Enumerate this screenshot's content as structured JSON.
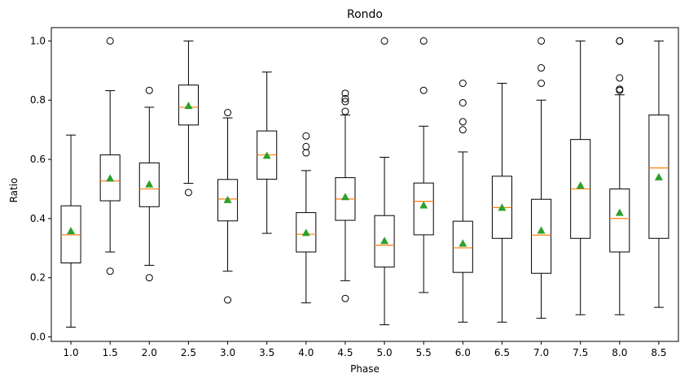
{
  "chart_data": {
    "type": "box",
    "title": "Rondo",
    "xlabel": "Phase",
    "ylabel": "Ratio",
    "ylim": [
      -0.015,
      1.045
    ],
    "yticks": [
      0.0,
      0.2,
      0.4,
      0.6,
      0.8,
      1.0
    ],
    "ytick_labels": [
      "0.0",
      "0.2",
      "0.4",
      "0.6",
      "0.8",
      "1.0"
    ],
    "grid": false,
    "colors": {
      "box": "#000000",
      "median": "#ff7f0e",
      "mean": "#2ca02c"
    },
    "categories": [
      "1.0",
      "1.5",
      "2.0",
      "2.5",
      "3.0",
      "3.5",
      "4.0",
      "4.5",
      "5.0",
      "5.5",
      "6.0",
      "6.5",
      "7.0",
      "7.5",
      "8.0",
      "8.5"
    ],
    "boxes": [
      {
        "whisker_low": 0.033,
        "q1": 0.25,
        "median": 0.345,
        "q3": 0.443,
        "whisker_high": 0.682,
        "mean": 0.358,
        "fliers": []
      },
      {
        "whisker_low": 0.287,
        "q1": 0.46,
        "median": 0.527,
        "q3": 0.615,
        "whisker_high": 0.832,
        "mean": 0.536,
        "fliers": [
          0.222,
          1.0
        ]
      },
      {
        "whisker_low": 0.242,
        "q1": 0.44,
        "median": 0.5,
        "q3": 0.588,
        "whisker_high": 0.776,
        "mean": 0.516,
        "fliers": [
          0.2,
          0.833
        ]
      },
      {
        "whisker_low": 0.519,
        "q1": 0.716,
        "median": 0.776,
        "q3": 0.851,
        "whisker_high": 1.0,
        "mean": 0.781,
        "fliers": [
          0.488
        ]
      },
      {
        "whisker_low": 0.222,
        "q1": 0.392,
        "median": 0.466,
        "q3": 0.532,
        "whisker_high": 0.74,
        "mean": 0.463,
        "fliers": [
          0.125,
          0.758
        ]
      },
      {
        "whisker_low": 0.35,
        "q1": 0.533,
        "median": 0.615,
        "q3": 0.696,
        "whisker_high": 0.895,
        "mean": 0.613,
        "fliers": []
      },
      {
        "whisker_low": 0.115,
        "q1": 0.287,
        "median": 0.347,
        "q3": 0.42,
        "whisker_high": 0.562,
        "mean": 0.352,
        "fliers": [
          0.622,
          0.643,
          0.679
        ]
      },
      {
        "whisker_low": 0.19,
        "q1": 0.394,
        "median": 0.466,
        "q3": 0.538,
        "whisker_high": 0.75,
        "mean": 0.473,
        "fliers": [
          0.13,
          0.762,
          0.795,
          0.805,
          0.823
        ]
      },
      {
        "whisker_low": 0.041,
        "q1": 0.236,
        "median": 0.31,
        "q3": 0.41,
        "whisker_high": 0.607,
        "mean": 0.325,
        "fliers": [
          1.0
        ]
      },
      {
        "whisker_low": 0.15,
        "q1": 0.345,
        "median": 0.458,
        "q3": 0.52,
        "whisker_high": 0.712,
        "mean": 0.445,
        "fliers": [
          0.833,
          1.0
        ]
      },
      {
        "whisker_low": 0.05,
        "q1": 0.218,
        "median": 0.301,
        "q3": 0.391,
        "whisker_high": 0.625,
        "mean": 0.316,
        "fliers": [
          0.7,
          0.727,
          0.791,
          0.857
        ]
      },
      {
        "whisker_low": 0.05,
        "q1": 0.333,
        "median": 0.437,
        "q3": 0.543,
        "whisker_high": 0.857,
        "mean": 0.437,
        "fliers": []
      },
      {
        "whisker_low": 0.063,
        "q1": 0.215,
        "median": 0.344,
        "q3": 0.465,
        "whisker_high": 0.8,
        "mean": 0.36,
        "fliers": [
          0.857,
          0.909,
          1.0
        ]
      },
      {
        "whisker_low": 0.075,
        "q1": 0.333,
        "median": 0.5,
        "q3": 0.667,
        "whisker_high": 1.0,
        "mean": 0.512,
        "fliers": []
      },
      {
        "whisker_low": 0.075,
        "q1": 0.287,
        "median": 0.4,
        "q3": 0.5,
        "whisker_high": 0.818,
        "mean": 0.42,
        "fliers": [
          0.833,
          0.837,
          0.875,
          1.0,
          1.0
        ]
      },
      {
        "whisker_low": 0.1,
        "q1": 0.333,
        "median": 0.571,
        "q3": 0.75,
        "whisker_high": 1.0,
        "mean": 0.54,
        "fliers": []
      }
    ]
  }
}
